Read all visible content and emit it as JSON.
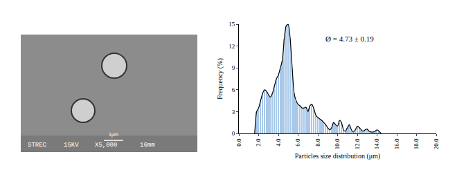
{
  "chart_data": {
    "type": "bar",
    "x_label": "Particles size distribution (μm)",
    "y_label": "Frequency (%)",
    "annotations": [
      "Ø = 4.73 ± 0.19"
    ],
    "x": [
      1.6,
      1.8,
      2.0,
      2.2,
      2.4,
      2.6,
      2.8,
      3.0,
      3.2,
      3.4,
      3.6,
      3.8,
      4.0,
      4.2,
      4.4,
      4.6,
      4.8,
      5.0,
      5.2,
      5.4,
      5.6,
      5.8,
      6.0,
      6.2,
      6.4,
      6.6,
      6.8,
      7.0,
      7.2,
      7.4,
      7.6,
      7.8,
      8.0,
      8.2,
      8.4,
      8.6,
      8.8,
      9.0,
      9.2,
      9.4,
      9.6,
      9.8,
      10.0,
      10.2,
      10.4,
      10.6,
      10.8,
      11.0,
      11.2,
      11.4,
      11.6,
      11.8,
      12.0,
      12.2,
      12.4,
      12.6,
      12.8,
      13.0,
      13.2,
      13.4,
      13.6,
      13.8,
      14.0,
      14.2,
      14.4
    ],
    "series": [
      {
        "type": "bar",
        "color": "#a9c8e8",
        "values": [
          0,
          3,
          3.5,
          4.5,
          5.5,
          6,
          5.8,
          5.3,
          5,
          5.5,
          6.5,
          7.5,
          8,
          9,
          10,
          13,
          14.8,
          15,
          13,
          9,
          5.5,
          4.5,
          4,
          3.8,
          3.5,
          3.5,
          3.6,
          3,
          3.8,
          4,
          3.4,
          2.5,
          2.2,
          2,
          1.8,
          1.5,
          1.2,
          0.8,
          0.5,
          0.8,
          1.5,
          1.2,
          1,
          1.8,
          1.5,
          0.5,
          0.3,
          0.8,
          1.2,
          0.5,
          0.2,
          0.5,
          1,
          0.8,
          0.5,
          0.3,
          0.5,
          0.6,
          0.3,
          0.2,
          0.2,
          0.3,
          0.5,
          0.3,
          0
        ]
      },
      {
        "type": "line",
        "color": "#000000",
        "values": [
          0,
          3,
          3.5,
          4.5,
          5.5,
          6,
          5.8,
          5.3,
          5,
          5.5,
          6.5,
          7.5,
          8,
          9,
          10,
          13,
          14.8,
          15,
          13,
          9,
          5.5,
          4.5,
          4,
          3.8,
          3.5,
          3.5,
          3.6,
          3,
          3.8,
          4,
          3.4,
          2.5,
          2.2,
          2,
          1.8,
          1.5,
          1.2,
          0.8,
          0.5,
          0.8,
          1.5,
          1.2,
          1,
          1.8,
          1.5,
          0.5,
          0.3,
          0.8,
          1.2,
          0.5,
          0.2,
          0.5,
          1,
          0.8,
          0.5,
          0.3,
          0.5,
          0.6,
          0.3,
          0.2,
          0.2,
          0.3,
          0.5,
          0.3,
          0
        ]
      }
    ],
    "xlim": [
      0,
      20
    ],
    "xticks": [
      {
        "value": 0,
        "label": "0.0"
      },
      {
        "value": 2,
        "label": "2.0"
      },
      {
        "value": 4,
        "label": "4.0"
      },
      {
        "value": 6,
        "label": "6.0"
      },
      {
        "value": 8,
        "label": "8.0"
      },
      {
        "value": 10,
        "label": "10.0"
      },
      {
        "value": 12,
        "label": "12.0"
      },
      {
        "value": 14,
        "label": "14.0"
      },
      {
        "value": 16,
        "label": "16.0"
      },
      {
        "value": 18,
        "label": "18.0"
      },
      {
        "value": 20,
        "label": "20.0"
      }
    ],
    "ylim": [
      0,
      15
    ],
    "yticks": [
      0,
      3,
      6,
      9,
      12,
      15
    ],
    "grid": false
  },
  "micrograph": {
    "labels": [
      "STREC",
      "15KV",
      "X5,000",
      "16mm"
    ],
    "scale_bar": "1μm"
  }
}
